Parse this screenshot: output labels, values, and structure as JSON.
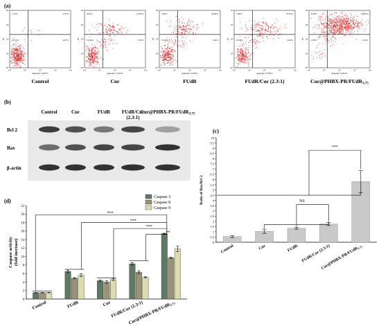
{
  "panel_a": {
    "label": "(a)",
    "axis_y_label": "PI",
    "axis_x_label": "Annexin V-FITC",
    "tick_labels": [
      "10⁰",
      "10¹",
      "10²",
      "10³",
      "10⁴"
    ],
    "plots": [
      {
        "name": "Control",
        "q1": "1.35%",
        "q2": "2.07%",
        "q3": "95.51%",
        "q4": "0.07%"
      },
      {
        "name": "Cur",
        "q1": "8.63%",
        "q2": "15.83%",
        "q3": "74.49%",
        "q4": "1.05%"
      },
      {
        "name": "FUdR",
        "q1": "5.09%",
        "q2": "20.64%",
        "q3": "72.33%",
        "q4": "1.94%"
      },
      {
        "name": "FUdR/Cur (2.3:1)",
        "q1": "1.98%",
        "q2": "25.05%",
        "q3": "65.29%",
        "q4": "0.02%"
      },
      {
        "name": "Cur@PHBX-PR/FUdR",
        "name_sub": "3.75",
        "q1": "0.49%",
        "q2": "92.82%",
        "q3": "4.78%",
        "q4": "1.91%"
      }
    ]
  },
  "panel_b": {
    "label": "(b)",
    "lanes": [
      "Control",
      "Cur",
      "FUdR",
      "FUdR/Cur",
      "Cur@PHBX-PR/FUdR"
    ],
    "lane_ratio": "(2.3:1)",
    "lane_sub": "3.75",
    "rows": [
      "Bcl 2",
      "Bax",
      "β-actin"
    ]
  },
  "panel_c": {
    "label": "(c)",
    "ylabel": "Ratio of Bax/Bcl 2",
    "ns_label": "NS",
    "sig_label": "***",
    "last_category_sub": "3.75"
  },
  "panel_d": {
    "label": "(d)",
    "ylabel_line1": "Caspase activity",
    "ylabel_line2": "(fold increase)",
    "last_category_sub": "3.75",
    "sig_labels": [
      "***",
      "***",
      "***",
      "**"
    ]
  },
  "colors": {
    "caspase3": "#5e7a64",
    "caspase8": "#9a9474",
    "caspase9": "#dedbb2",
    "bar_c": "#c9c9c9",
    "flow_red": "#e02020"
  },
  "chart_data": [
    {
      "type": "bar",
      "panel": "c",
      "categories": [
        "Control",
        "Cur",
        "FUdR",
        "FUdR/Cur (2.3:1)",
        "Cur@PHBX-PR/FUdR3.75"
      ],
      "values": [
        0.55,
        1.05,
        1.35,
        1.75,
        5.8
      ],
      "errors": [
        0.1,
        0.2,
        0.1,
        0.15,
        1.05
      ],
      "ylabel": "Ratio of Bax/Bcl 2",
      "ylim": [
        0,
        10
      ],
      "yticks": [
        0,
        0.5,
        1,
        1.5,
        2,
        2.5,
        3,
        3.5,
        4,
        4.5,
        5,
        5.5,
        6,
        6.5,
        7,
        7.5,
        8,
        8.5,
        9,
        9.5,
        10
      ],
      "ytick_labels": [
        "0",
        "0.5",
        "1",
        "1.5",
        "2",
        "2.5",
        "3",
        "3.5",
        "4",
        "4.5",
        "5",
        "5.5",
        "6",
        "6.5",
        "7",
        "7.5",
        "8",
        "8.5",
        "9",
        "9.5",
        "10"
      ]
    },
    {
      "type": "bar",
      "panel": "d",
      "categories": [
        "Control",
        "FUdR",
        "Cur",
        "FUdR/Cur (2.3:1)",
        "Cur@PHBX-PR/FUdR3.75"
      ],
      "series": [
        {
          "name": "Caspase 3",
          "values": [
            1.5,
            6.5,
            4.3,
            8.3,
            15.4
          ],
          "errors": [
            0.05,
            0.3,
            0.15,
            0.3,
            0.1
          ]
        },
        {
          "name": "Caspase 8",
          "values": [
            1.5,
            4.9,
            4.0,
            6.3,
            9.7
          ],
          "errors": [
            0.05,
            0.15,
            0.3,
            0.35,
            0.15
          ]
        },
        {
          "name": "Caspase 9",
          "values": [
            1.5,
            5.6,
            4.6,
            5.1,
            11.8
          ],
          "errors": [
            0.05,
            0.35,
            0.25,
            0.15,
            0.65
          ]
        }
      ],
      "ylabel": "Caspase activity (fold increase)",
      "ylim": [
        0,
        22
      ],
      "yticks": [
        0,
        2,
        4,
        6,
        8,
        10,
        12,
        14,
        16,
        18,
        20,
        22
      ],
      "ytick_labels": [
        "0",
        "2",
        "4",
        "6",
        "8",
        "10",
        "12",
        "14",
        "16",
        "18",
        "20",
        "22"
      ],
      "legend": "top-left"
    }
  ]
}
